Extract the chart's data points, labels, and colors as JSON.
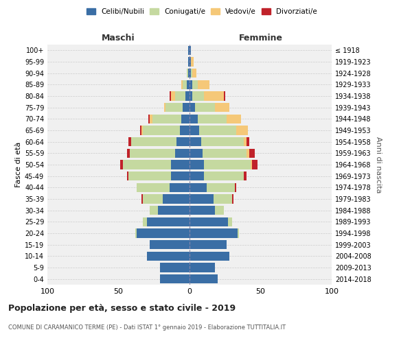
{
  "age_groups": [
    "0-4",
    "5-9",
    "10-14",
    "15-19",
    "20-24",
    "25-29",
    "30-34",
    "35-39",
    "40-44",
    "45-49",
    "50-54",
    "55-59",
    "60-64",
    "65-69",
    "70-74",
    "75-79",
    "80-84",
    "85-89",
    "90-94",
    "95-99",
    "100+"
  ],
  "birth_years": [
    "2014-2018",
    "2009-2013",
    "2004-2008",
    "1999-2003",
    "1994-1998",
    "1989-1993",
    "1984-1988",
    "1979-1983",
    "1974-1978",
    "1969-1973",
    "1964-1968",
    "1959-1963",
    "1954-1958",
    "1949-1953",
    "1944-1948",
    "1939-1943",
    "1934-1938",
    "1929-1933",
    "1924-1928",
    "1919-1923",
    "≤ 1918"
  ],
  "colors": {
    "celibi": "#3a6ea5",
    "coniugati": "#c5d9a0",
    "vedovi": "#f5c878",
    "divorziati": "#c0222a"
  },
  "legend_labels": [
    "Celibi/Nubili",
    "Coniugati/e",
    "Vedovi/e",
    "Divorziati/e"
  ],
  "maschi": {
    "celibi": [
      21,
      21,
      30,
      28,
      37,
      30,
      22,
      19,
      14,
      13,
      13,
      10,
      9,
      7,
      6,
      5,
      3,
      2,
      1,
      1,
      1
    ],
    "coniugati": [
      0,
      0,
      0,
      0,
      1,
      3,
      6,
      14,
      23,
      30,
      34,
      32,
      32,
      26,
      20,
      12,
      7,
      3,
      1,
      0,
      0
    ],
    "vedovi": [
      0,
      0,
      0,
      0,
      0,
      0,
      0,
      0,
      0,
      0,
      0,
      0,
      0,
      1,
      2,
      1,
      3,
      1,
      0,
      0,
      0
    ],
    "divorziati": [
      0,
      0,
      0,
      0,
      0,
      0,
      0,
      1,
      0,
      1,
      2,
      2,
      2,
      1,
      1,
      0,
      1,
      0,
      0,
      0,
      0
    ]
  },
  "femmine": {
    "nubili": [
      20,
      18,
      28,
      26,
      34,
      27,
      18,
      17,
      12,
      10,
      10,
      9,
      8,
      7,
      6,
      4,
      2,
      2,
      1,
      1,
      1
    ],
    "coniugate": [
      0,
      0,
      0,
      0,
      1,
      3,
      6,
      13,
      20,
      28,
      33,
      31,
      30,
      26,
      20,
      14,
      8,
      4,
      1,
      0,
      0
    ],
    "vedove": [
      0,
      0,
      0,
      0,
      0,
      0,
      0,
      0,
      0,
      0,
      1,
      2,
      2,
      8,
      10,
      10,
      14,
      8,
      3,
      2,
      0
    ],
    "divorziate": [
      0,
      0,
      0,
      0,
      0,
      0,
      0,
      1,
      1,
      2,
      4,
      4,
      2,
      0,
      0,
      0,
      1,
      0,
      0,
      0,
      0
    ]
  },
  "title": "Popolazione per età, sesso e stato civile - 2019",
  "subtitle": "COMUNE DI CARAMANICO TERME (PE) - Dati ISTAT 1° gennaio 2019 - Elaborazione TUTTITALIA.IT",
  "xlabel_left": "Maschi",
  "xlabel_right": "Femmine",
  "ylabel_left": "Fasce di età",
  "ylabel_right": "Anni di nascita",
  "xlim": 100,
  "bg_color": "#f0f0f0"
}
